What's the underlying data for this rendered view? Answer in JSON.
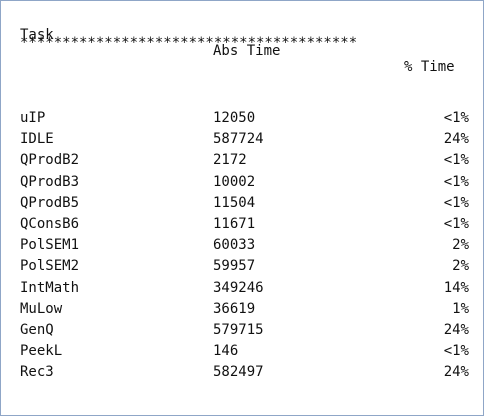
{
  "table": {
    "headers": {
      "task": "Task",
      "abs_time": "Abs Time",
      "pct_time": "% Time"
    },
    "divider": "****************************************",
    "rows": [
      {
        "task": "uIP",
        "abs": "12050",
        "pct": "<1%"
      },
      {
        "task": "IDLE",
        "abs": "587724",
        "pct": "24%"
      },
      {
        "task": "QProdB2",
        "abs": "2172",
        "pct": "<1%"
      },
      {
        "task": "QProdB3",
        "abs": "10002",
        "pct": "<1%"
      },
      {
        "task": "QProdB5",
        "abs": "11504",
        "pct": "<1%"
      },
      {
        "task": "QConsB6",
        "abs": "11671",
        "pct": "<1%"
      },
      {
        "task": "PolSEM1",
        "abs": "60033",
        "pct": "2%"
      },
      {
        "task": "PolSEM2",
        "abs": "59957",
        "pct": "2%"
      },
      {
        "task": "IntMath",
        "abs": "349246",
        "pct": "14%"
      },
      {
        "task": "MuLow",
        "abs": "36619",
        "pct": "1%"
      },
      {
        "task": "GenQ",
        "abs": "579715",
        "pct": "24%"
      },
      {
        "task": "PeekL",
        "abs": "146",
        "pct": "<1%"
      },
      {
        "task": "Rec3",
        "abs": "582497",
        "pct": "24%"
      }
    ]
  }
}
